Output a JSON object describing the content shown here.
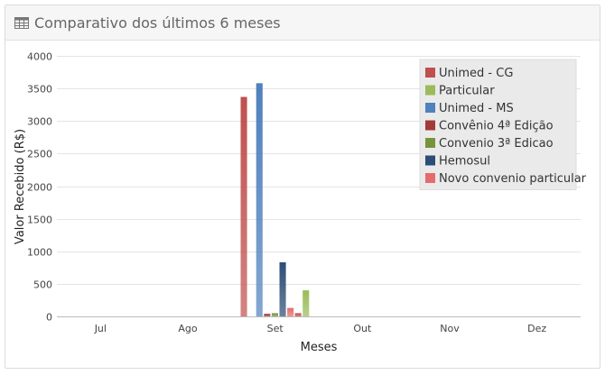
{
  "panel": {
    "title": "Comparativo dos últimos 6 meses",
    "icon": "table-icon"
  },
  "chart_data": {
    "type": "bar",
    "categories": [
      "Jul",
      "Ago",
      "Set",
      "Out",
      "Nov",
      "Dez"
    ],
    "xlabel": "Meses",
    "ylabel": "Valor Recebido (R$)",
    "ylim": [
      0,
      4000
    ],
    "yticks": [
      0,
      500,
      1000,
      1500,
      2000,
      2500,
      3000,
      3500,
      4000
    ],
    "grid": true,
    "legend_position": "top-right",
    "series": [
      {
        "name": "Unimed - CG",
        "color": "#c0504d",
        "values": [
          0,
          0,
          3370,
          0,
          0,
          0
        ]
      },
      {
        "name": "Particular",
        "color": "#9bbb59",
        "values": [
          0,
          0,
          0,
          0,
          0,
          0
        ]
      },
      {
        "name": "Unimed - MS",
        "color": "#4f81bd",
        "values": [
          0,
          0,
          3580,
          0,
          0,
          0
        ]
      },
      {
        "name": "Convênio 4ª Edição",
        "color": "#a33a37",
        "values": [
          0,
          0,
          40,
          0,
          0,
          0
        ]
      },
      {
        "name": "Convenio 3ª Edicao",
        "color": "#77933c",
        "values": [
          0,
          0,
          50,
          0,
          0,
          0
        ]
      },
      {
        "name": "Hemosul",
        "color": "#2c4d75",
        "values": [
          0,
          0,
          830,
          0,
          0,
          0
        ]
      },
      {
        "name": "Novo convenio particular",
        "color": "#e46c6c",
        "values": [
          0,
          0,
          130,
          0,
          0,
          0
        ]
      },
      {
        "name": "",
        "color": "#c0504d",
        "values": [
          0,
          0,
          50,
          0,
          0,
          0
        ]
      },
      {
        "name": "",
        "color": "#9bbb59",
        "values": [
          0,
          0,
          400,
          0,
          0,
          0
        ]
      }
    ]
  }
}
